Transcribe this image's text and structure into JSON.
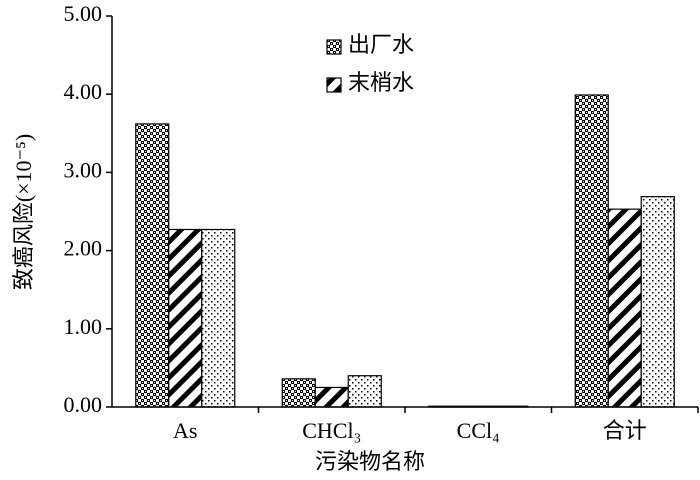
{
  "chart_data": {
    "type": "bar",
    "x_label": "污染物名称",
    "y_label": "致癌风险(×10⁻⁵)",
    "categories": [
      "As",
      "CHCl₃",
      "CCl₄",
      "合计"
    ],
    "series": [
      {
        "name": "出厂水",
        "color": "#000000",
        "values": [
          3.62,
          0.36,
          0.01,
          3.99
        ]
      },
      {
        "name": "末梢水",
        "color": "#000000",
        "values": [
          2.27,
          0.25,
          0.01,
          2.53
        ]
      },
      {
        "color": "#000000",
        "values": [
          2.27,
          0.4,
          0.01,
          2.69
        ]
      }
    ],
    "ylim": [
      0,
      5
    ],
    "yticks": [
      {
        "value": 0,
        "label": "0.00"
      },
      {
        "value": 1,
        "label": "1.00"
      },
      {
        "value": 2,
        "label": "2.00"
      },
      {
        "value": 3,
        "label": "3.00"
      },
      {
        "value": 4,
        "label": "4.00"
      },
      {
        "value": 5,
        "label": "5.00"
      }
    ],
    "legend": "top-center"
  }
}
